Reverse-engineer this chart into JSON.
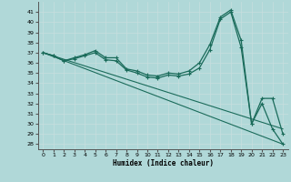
{
  "xlabel": "Humidex (Indice chaleur)",
  "ylabel": "",
  "background_color": "#b0d8d8",
  "line_color": "#1a6b5a",
  "xlim": [
    -0.5,
    23.5
  ],
  "ylim": [
    27.5,
    42.0
  ],
  "xticks": [
    0,
    1,
    2,
    3,
    4,
    5,
    6,
    7,
    8,
    9,
    10,
    11,
    12,
    13,
    14,
    15,
    16,
    17,
    18,
    19,
    20,
    21,
    22,
    23
  ],
  "yticks": [
    28,
    29,
    30,
    31,
    32,
    33,
    34,
    35,
    36,
    37,
    38,
    39,
    40,
    41
  ],
  "series1": [
    37.0,
    36.7,
    36.2,
    36.5,
    36.8,
    37.2,
    36.5,
    36.5,
    35.4,
    35.2,
    34.8,
    34.7,
    35.0,
    34.9,
    35.2,
    36.0,
    37.8,
    40.5,
    41.2,
    38.2,
    30.0,
    32.5,
    32.5,
    29.0
  ],
  "series2": [
    37.0,
    36.7,
    36.2,
    36.4,
    36.7,
    37.0,
    36.3,
    36.2,
    35.3,
    35.0,
    34.6,
    34.5,
    34.8,
    34.7,
    34.9,
    35.5,
    37.3,
    40.3,
    41.0,
    37.5,
    30.0,
    32.0,
    29.5,
    28.0
  ],
  "series3_line": {
    "x": [
      0,
      23
    ],
    "y": [
      37.0,
      28.0
    ]
  },
  "series4_line": {
    "x": [
      0,
      23
    ],
    "y": [
      37.0,
      29.5
    ]
  }
}
